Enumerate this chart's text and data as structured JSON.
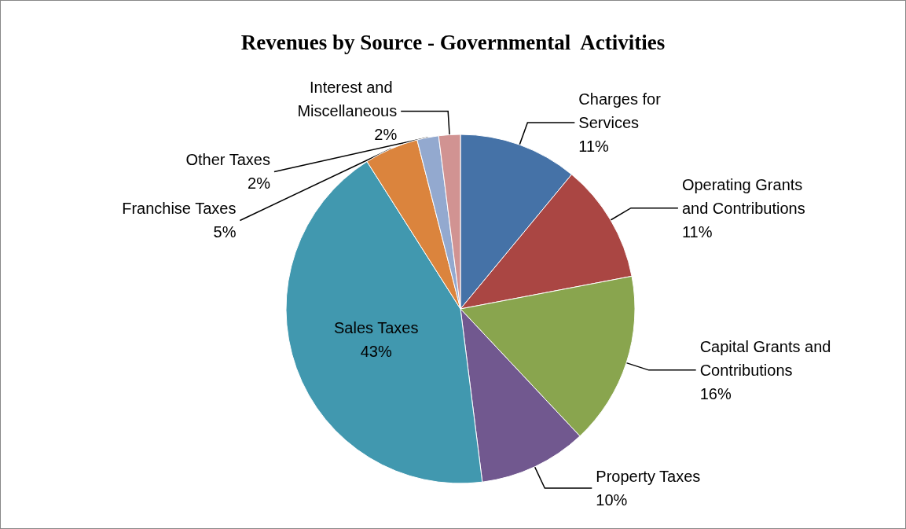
{
  "chart_data": {
    "type": "pie",
    "title": "Revenues by Source - Governmental  Activities",
    "categories": [
      "Charges for Services",
      "Operating Grants and Contributions",
      "Capital Grants and Contributions",
      "Property Taxes",
      "Sales Taxes",
      "Franchise Taxes",
      "Other Taxes",
      "Interest and Miscellaneous"
    ],
    "values": [
      11,
      11,
      16,
      10,
      43,
      5,
      2,
      2
    ],
    "value_labels": [
      "11%",
      "11%",
      "16%",
      "10%",
      "43%",
      "5%",
      "2%",
      "2%"
    ],
    "colors": [
      "#4572a7",
      "#aa4643",
      "#89a54e",
      "#71588f",
      "#4198af",
      "#db843d",
      "#93a9cf",
      "#d19392"
    ],
    "legend": false
  }
}
